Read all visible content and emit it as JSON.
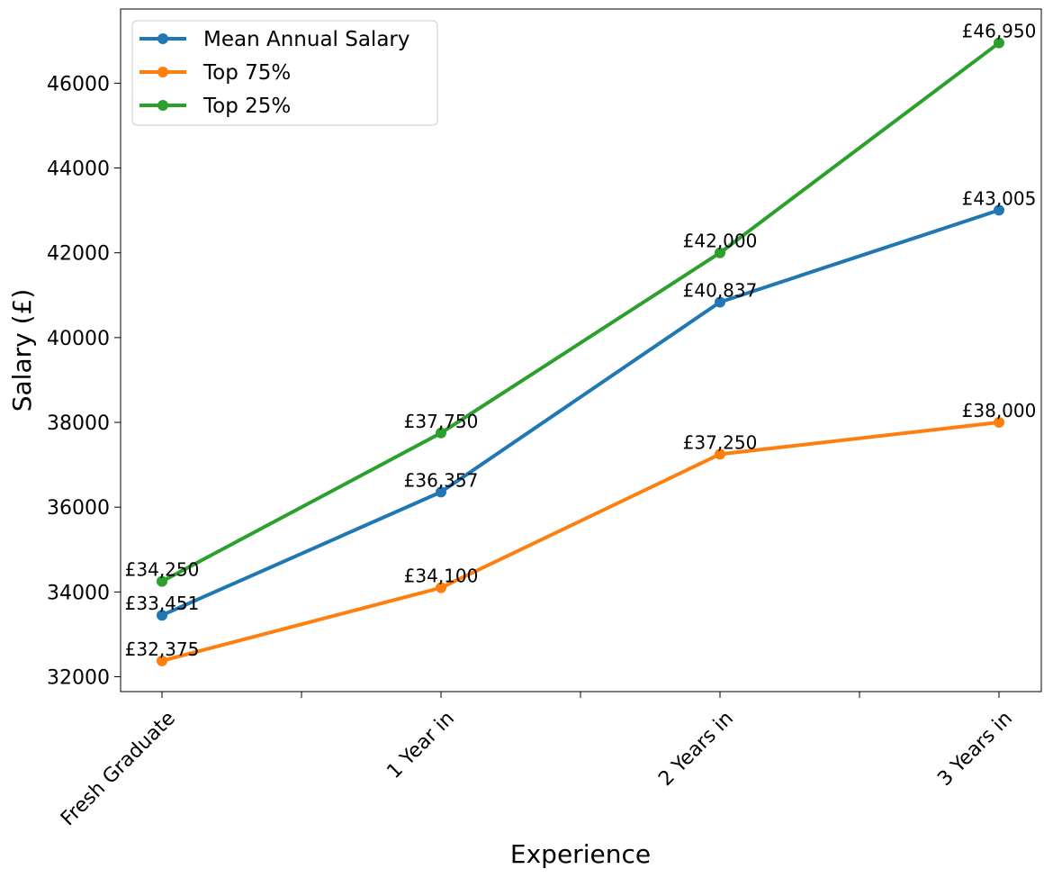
{
  "chart_data": {
    "type": "line",
    "title": "",
    "xlabel": "Experience",
    "ylabel": "Salary (£)",
    "categories": [
      "Fresh Graduate",
      "1 Year in",
      "2 Years in",
      "3 Years in"
    ],
    "ylim": [
      31650,
      47750
    ],
    "yticks": [
      32000,
      34000,
      36000,
      38000,
      40000,
      42000,
      44000,
      46000
    ],
    "ytick_labels": [
      "32000",
      "34000",
      "36000",
      "38000",
      "40000",
      "42000",
      "44000",
      "46000"
    ],
    "grid": false,
    "legend": "top-left",
    "series": [
      {
        "name": "Mean Annual Salary",
        "color": "#1f77b4",
        "values": [
          33451,
          36357,
          40837,
          43005
        ],
        "labels": [
          "£33,451",
          "£36,357",
          "£40,837",
          "£43,005"
        ]
      },
      {
        "name": "Top 75%",
        "color": "#ff7f0e",
        "values": [
          32375,
          34100,
          37250,
          38000
        ],
        "labels": [
          "£32,375",
          "£34,100",
          "£37,250",
          "£38,000"
        ]
      },
      {
        "name": "Top 25%",
        "color": "#2ca02c",
        "values": [
          34250,
          37750,
          42000,
          46950
        ],
        "labels": [
          "£34,250",
          "£37,750",
          "£42,000",
          "£46,950"
        ]
      }
    ]
  }
}
